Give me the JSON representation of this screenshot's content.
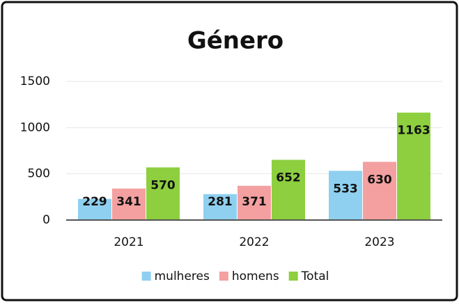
{
  "chart_data": {
    "type": "bar",
    "title": "Género",
    "categories": [
      "2021",
      "2022",
      "2023"
    ],
    "series": [
      {
        "name": "mulheres",
        "color": "#8fd0f0",
        "values": [
          229,
          281,
          533
        ]
      },
      {
        "name": "homens",
        "color": "#f4a0a0",
        "values": [
          341,
          371,
          630
        ]
      },
      {
        "name": "Total",
        "color": "#8dcf3f",
        "values": [
          570,
          652,
          1163
        ]
      }
    ],
    "ylim": [
      0,
      1500
    ],
    "yticks": [
      0,
      500,
      1000,
      1500
    ],
    "grid": true,
    "legend": "bottom"
  }
}
